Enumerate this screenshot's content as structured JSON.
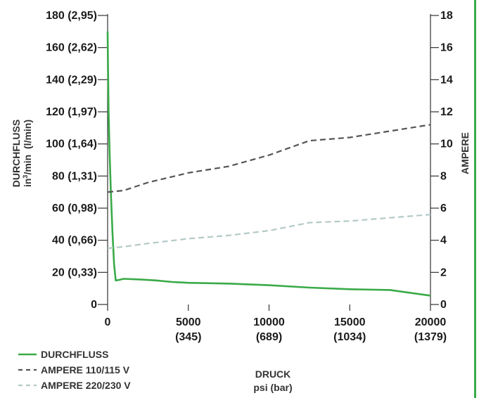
{
  "chart_data": {
    "type": "line",
    "title": "",
    "xlabel": "DRUCK",
    "xlabel_unit": "psi (bar)",
    "ylabel_left": "DURCHFLUSS",
    "ylabel_left_unit_prefix": "in",
    "ylabel_left_unit_sup": "3",
    "ylabel_left_unit_suffix": "/min  (l/min)",
    "ylabel_right": "AMPERE",
    "x_ticks": [
      {
        "value": 0,
        "line1": "0",
        "line2": ""
      },
      {
        "value": 5000,
        "line1": "5000",
        "line2": "(345)"
      },
      {
        "value": 10000,
        "line1": "10000",
        "line2": "(689)"
      },
      {
        "value": 15000,
        "line1": "15000",
        "line2": "(1034)"
      },
      {
        "value": 20000,
        "line1": "20000",
        "line2": "(1379)"
      }
    ],
    "y_left_ticks": [
      {
        "value": 0,
        "label": "0"
      },
      {
        "value": 20,
        "label": "20 (0,33)"
      },
      {
        "value": 40,
        "label": "40 (0,66)"
      },
      {
        "value": 60,
        "label": "60 (0,98)"
      },
      {
        "value": 80,
        "label": "80 (1,31)"
      },
      {
        "value": 100,
        "label": "100 (1,64)"
      },
      {
        "value": 120,
        "label": "120 (1,97)"
      },
      {
        "value": 140,
        "label": "140 (2,29)"
      },
      {
        "value": 160,
        "label": "160 (2,62)"
      },
      {
        "value": 180,
        "label": "180 (2,95)"
      }
    ],
    "y_right_ticks": [
      0,
      2,
      4,
      6,
      8,
      10,
      12,
      14,
      16,
      18
    ],
    "xlim": [
      0,
      20000
    ],
    "ylim_left": [
      0,
      180
    ],
    "ylim_right": [
      0,
      18
    ],
    "legend_position": "bottom-left",
    "colors": {
      "durchfluss": "#3aaa48",
      "ampere_110": "#555555",
      "ampere_220": "#b4c9c8",
      "axis": "#333333",
      "border": "#3aaa48"
    },
    "series": [
      {
        "name": "DURCHFLUSS",
        "axis": "left",
        "style": "solid",
        "x": [
          0,
          20,
          60,
          120,
          200,
          300,
          400,
          500,
          700,
          1000,
          2000,
          3000,
          4000,
          5000,
          7500,
          10000,
          12500,
          15000,
          17500,
          20000
        ],
        "y": [
          170,
          150,
          120,
          95,
          70,
          45,
          25,
          15,
          15.3,
          16,
          15.6,
          15,
          14,
          13.5,
          13,
          12,
          10.5,
          9.5,
          9,
          5.5
        ]
      },
      {
        "name": "AMPERE 110/115 V",
        "axis": "right",
        "style": "dashed",
        "x": [
          0,
          1000,
          2500,
          5000,
          7500,
          10000,
          12500,
          15000,
          17500,
          20000
        ],
        "y": [
          7,
          7.1,
          7.6,
          8.2,
          8.6,
          9.3,
          10.2,
          10.4,
          10.8,
          11.2
        ]
      },
      {
        "name": "AMPERE 220/230 V",
        "axis": "right",
        "style": "dashed",
        "x": [
          0,
          1000,
          2500,
          5000,
          7500,
          10000,
          12500,
          15000,
          17500,
          20000
        ],
        "y": [
          3.5,
          3.6,
          3.8,
          4.1,
          4.3,
          4.6,
          5.1,
          5.2,
          5.4,
          5.6
        ]
      }
    ]
  }
}
